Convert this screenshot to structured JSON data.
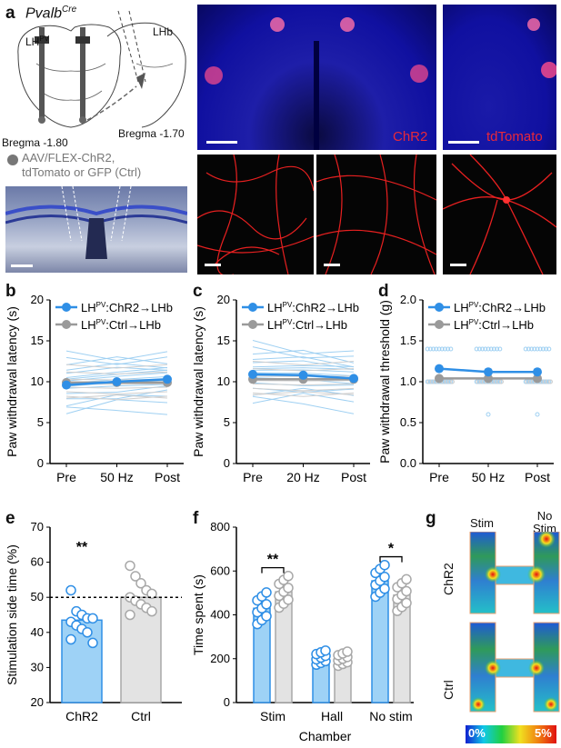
{
  "panel_a": {
    "label": "a",
    "genotype": "Pvalb",
    "genotype_sup": "Cre",
    "lh_label": "LH",
    "lh_sup": "PV",
    "lhb_label": "LHb",
    "bregma_left": "Bregma -1.80",
    "bregma_right": "Bregma -1.70",
    "virus_line1": "AAV/FLEX-ChR2,",
    "virus_line2": "tdTomato or GFP (Ctrl)",
    "chr2_label": "ChR2",
    "tdtomato_label": "tdTomato"
  },
  "panels": {
    "b": "b",
    "c": "c",
    "d": "d",
    "e": "e",
    "f": "f",
    "g": "g"
  },
  "legend": {
    "chr2_prefix": "LH",
    "chr2_sup": "PV",
    "chr2_suffix": ":ChR2→LHb",
    "ctrl_prefix": "LH",
    "ctrl_sup": "PV",
    "ctrl_suffix": ":Ctrl→LHb"
  },
  "colors": {
    "chr2": "#2f8fe6",
    "chr2_light": "#9fd0f2",
    "ctrl": "#9a9a9a",
    "ctrl_light": "#cfcfcf"
  },
  "chart_data": [
    {
      "id": "b",
      "type": "line",
      "ylabel": "Paw withdrawal latency (s)",
      "categories": [
        "Pre",
        "50 Hz",
        "Post"
      ],
      "ylim": [
        0,
        20
      ],
      "yticks": [
        0,
        5,
        10,
        15,
        20
      ],
      "series": [
        {
          "name": "ChR2",
          "values": [
            9.6,
            10.0,
            10.3
          ]
        },
        {
          "name": "Ctrl",
          "values": [
            9.9,
            9.9,
            9.9
          ]
        }
      ]
    },
    {
      "id": "c",
      "type": "line",
      "ylabel": "Paw withdrawal latency (s)",
      "categories": [
        "Pre",
        "20 Hz",
        "Post"
      ],
      "ylim": [
        0,
        20
      ],
      "yticks": [
        0,
        5,
        10,
        15,
        20
      ],
      "series": [
        {
          "name": "ChR2",
          "values": [
            10.9,
            10.8,
            10.4
          ]
        },
        {
          "name": "Ctrl",
          "values": [
            10.3,
            10.3,
            10.3
          ]
        }
      ]
    },
    {
      "id": "d",
      "type": "line",
      "ylabel": "Paw withdrawal threshold (g)",
      "categories": [
        "Pre",
        "50 Hz",
        "Post"
      ],
      "ylim": [
        0,
        2.0
      ],
      "yticks": [
        0,
        0.5,
        1.0,
        1.5,
        2.0
      ],
      "series": [
        {
          "name": "ChR2",
          "values": [
            1.16,
            1.12,
            1.12
          ]
        },
        {
          "name": "Ctrl",
          "values": [
            1.04,
            1.04,
            1.04
          ]
        }
      ]
    },
    {
      "id": "e",
      "type": "bar",
      "ylabel": "Stimulation side time (%)",
      "categories": [
        "ChR2",
        "Ctrl"
      ],
      "values": [
        43.5,
        50
      ],
      "points": [
        [
          52,
          46,
          45,
          44,
          44,
          43,
          42,
          41,
          40,
          37,
          38
        ],
        [
          59,
          56,
          54,
          52,
          51,
          50,
          49,
          48,
          47,
          46,
          45
        ]
      ],
      "ylim": [
        20,
        70
      ],
      "yticks": [
        20,
        30,
        40,
        50,
        60,
        70
      ],
      "reference_line": 50,
      "significance": "**"
    },
    {
      "id": "f",
      "type": "bar",
      "ylabel": "Time spent (s)",
      "xlabel": "Chamber",
      "categories": [
        "Stim",
        "Hall",
        "No stim"
      ],
      "series": [
        {
          "name": "ChR2",
          "values": [
            430,
            205,
            555
          ]
        },
        {
          "name": "Ctrl",
          "values": [
            505,
            200,
            490
          ]
        }
      ],
      "ylim": [
        0,
        800
      ],
      "yticks": [
        0,
        200,
        400,
        600,
        800
      ],
      "significance": [
        "**",
        "",
        "*"
      ]
    },
    {
      "id": "g",
      "type": "heatmap",
      "col_labels": [
        "Stim",
        "No"
      ],
      "col_label_extra": "Stim",
      "row_labels": [
        "ChR2",
        "Ctrl"
      ],
      "scale_min": "0%",
      "scale_max": "5%"
    }
  ]
}
